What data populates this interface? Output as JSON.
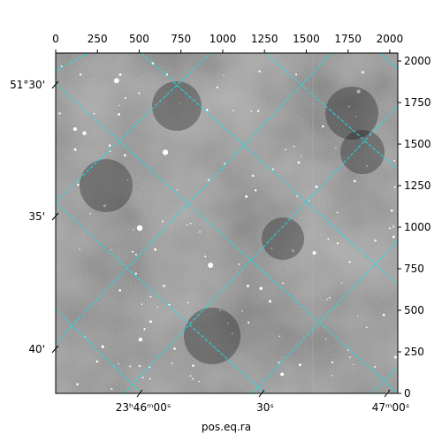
{
  "chart_data": {
    "type": "heatmap",
    "xlabel": "pos.eq.ra",
    "ylabel": "",
    "pixel_x_ticks": [
      "0",
      "250",
      "500",
      "750",
      "1000",
      "1250",
      "1500",
      "1750",
      "2000"
    ],
    "pixel_y_ticks": [
      "0",
      "250",
      "500",
      "750",
      "1000",
      "1250",
      "1500",
      "1750",
      "2000"
    ],
    "ra_ticks": [
      {
        "hm": "23ʰ46ᵐ",
        "s": "00ˢ"
      },
      {
        "hm": "",
        "s": "30ˢ"
      },
      {
        "hm": "47ᵐ",
        "s": "00ˢ"
      }
    ],
    "dec_ticks": [
      "51°30'",
      "35'",
      "40'"
    ],
    "pixel_range": [
      0,
      2048
    ],
    "grid": true,
    "grid_color": "#19e0e6",
    "colormap": "gray"
  }
}
